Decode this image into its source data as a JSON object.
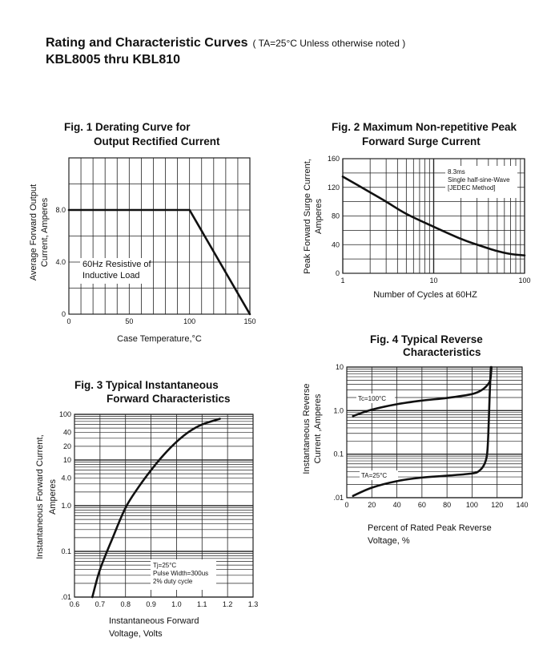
{
  "header": {
    "title": "Rating and Characteristic Curves",
    "condition": "( TA=25°C Unless otherwise noted )",
    "models": "KBL8005  thru  KBL810"
  },
  "chart_data": [
    {
      "type": "line",
      "title": [
        "Fig. 1 Derating Curve for",
        "Output Rectified Current"
      ],
      "xlabel": [
        "Case Temperature,°C"
      ],
      "ylabel": [
        "Average Forward Output",
        "Current, Amperes"
      ],
      "xscale": "linear",
      "yscale": "linear",
      "xlim": [
        0,
        150
      ],
      "ylim": [
        0,
        12
      ],
      "grid": true,
      "xticks": [
        {
          "v": 0,
          "t": "0"
        },
        {
          "v": 50,
          "t": "50"
        },
        {
          "v": 100,
          "t": "100"
        },
        {
          "v": 150,
          "t": "150"
        }
      ],
      "yticks": [
        {
          "v": 0,
          "t": "0"
        },
        {
          "v": 4,
          "t": "4.0"
        },
        {
          "v": 8,
          "t": "8.0"
        }
      ],
      "annotation": [
        "60Hz Resistive of",
        "Inductive Load"
      ],
      "series": [
        {
          "x": [
            0,
            100,
            150
          ],
          "y": [
            8,
            8,
            0
          ]
        }
      ]
    },
    {
      "type": "line",
      "title": [
        "Fig. 2 Maximum Non-repetitive Peak",
        "Forward Surge Current"
      ],
      "xlabel": [
        "Number of Cycles at 60HZ"
      ],
      "ylabel": [
        "Peak Forward Surge Current,",
        "Amperes"
      ],
      "xscale": "log",
      "yscale": "linear",
      "xlim": [
        1,
        100
      ],
      "ylim": [
        0,
        160
      ],
      "grid": true,
      "xticks": [
        {
          "v": 1,
          "t": "1"
        },
        {
          "v": 10,
          "t": "10"
        },
        {
          "v": 100,
          "t": "100"
        }
      ],
      "yticks": [
        {
          "v": 0,
          "t": "0"
        },
        {
          "v": 40,
          "t": "40"
        },
        {
          "v": 80,
          "t": "80"
        },
        {
          "v": 120,
          "t": "120"
        },
        {
          "v": 160,
          "t": "160"
        }
      ],
      "annotation": [
        "8.3ms",
        "Single half-sine-Wave",
        "[JEDEC Method]"
      ],
      "series": [
        {
          "x": [
            1,
            2,
            3,
            5,
            10,
            20,
            30,
            50,
            70,
            100
          ],
          "y": [
            135,
            113,
            100,
            83,
            65,
            48,
            40,
            31,
            27,
            25
          ]
        }
      ]
    },
    {
      "type": "line",
      "title": [
        "Fig. 3 Typical Instantaneous",
        "Forward Characteristics"
      ],
      "xlabel": [
        "Instantaneous Forward",
        "Voltage, Volts"
      ],
      "ylabel": [
        "Instantaneous Forward Current,",
        "Amperes"
      ],
      "xscale": "linear",
      "yscale": "log",
      "xlim": [
        0.6,
        1.3
      ],
      "ylim": [
        0.01,
        100
      ],
      "grid": true,
      "xticks": [
        {
          "v": 0.6,
          "t": "0.6"
        },
        {
          "v": 0.7,
          "t": "0.7"
        },
        {
          "v": 0.8,
          "t": "0.8"
        },
        {
          "v": 0.9,
          "t": "0.9"
        },
        {
          "v": 1.0,
          "t": "1.0"
        },
        {
          "v": 1.1,
          "t": "1.1"
        },
        {
          "v": 1.2,
          "t": "1.2"
        },
        {
          "v": 1.3,
          "t": "1.3"
        }
      ],
      "yticks": [
        {
          "v": 0.01,
          "t": ".01"
        },
        {
          "v": 0.1,
          "t": "0.1"
        },
        {
          "v": 1,
          "t": "1.0"
        },
        {
          "v": 4,
          "t": "4.0"
        },
        {
          "v": 10,
          "t": "10"
        },
        {
          "v": 20,
          "t": "20"
        },
        {
          "v": 40,
          "t": "40"
        },
        {
          "v": 100,
          "t": "100"
        }
      ],
      "annotation": [
        "Tj=25°C",
        "Pulse Width=300us",
        "2% duty cycle"
      ],
      "series": [
        {
          "x": [
            0.67,
            0.7,
            0.75,
            0.8,
            0.85,
            0.9,
            0.95,
            1.0,
            1.05,
            1.1,
            1.17
          ],
          "y": [
            0.01,
            0.04,
            0.2,
            0.9,
            2.5,
            6,
            13,
            25,
            42,
            60,
            80
          ]
        }
      ]
    },
    {
      "type": "line",
      "title": [
        "Fig. 4 Typical Reverse",
        "Characteristics"
      ],
      "xlabel": [
        "Percent of Rated Peak Reverse",
        "Voltage, %"
      ],
      "ylabel": [
        "Instantaneous Reverse",
        "Current ,Amperes"
      ],
      "xscale": "linear",
      "yscale": "log",
      "xlim": [
        0,
        140
      ],
      "ylim": [
        0.01,
        10
      ],
      "grid": true,
      "xticks": [
        {
          "v": 0,
          "t": "0"
        },
        {
          "v": 20,
          "t": "20"
        },
        {
          "v": 40,
          "t": "40"
        },
        {
          "v": 60,
          "t": "60"
        },
        {
          "v": 80,
          "t": "80"
        },
        {
          "v": 100,
          "t": "100"
        },
        {
          "v": 120,
          "t": "120"
        },
        {
          "v": 140,
          "t": "140"
        }
      ],
      "yticks": [
        {
          "v": 0.01,
          "t": ".01"
        },
        {
          "v": 0.1,
          "t": "0.1"
        },
        {
          "v": 1,
          "t": "1.0"
        },
        {
          "v": 10,
          "t": "10"
        }
      ],
      "series": [
        {
          "name": "Tc=100°C",
          "x": [
            5,
            20,
            40,
            60,
            80,
            100,
            108,
            112,
            114.5,
            115.5
          ],
          "y": [
            0.75,
            1.05,
            1.4,
            1.7,
            1.95,
            2.4,
            3.0,
            3.8,
            5,
            10
          ]
        },
        {
          "name": "TA=25°C",
          "x": [
            5,
            20,
            40,
            60,
            80,
            100,
            106,
            110,
            112,
            113,
            114,
            115
          ],
          "y": [
            0.011,
            0.017,
            0.024,
            0.029,
            0.032,
            0.036,
            0.042,
            0.06,
            0.1,
            0.3,
            2,
            10
          ]
        }
      ]
    }
  ]
}
